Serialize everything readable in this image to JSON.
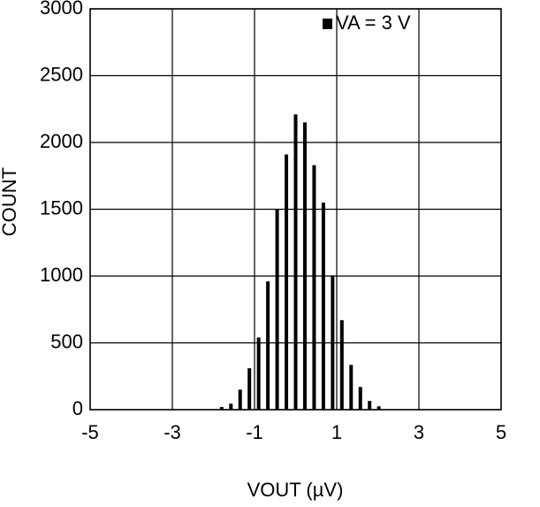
{
  "chart_data": {
    "type": "bar",
    "x_label": "VOUT (µV)",
    "y_label": "COUNT",
    "x": [
      -1.8,
      -1.575,
      -1.35,
      -1.125,
      -0.9,
      -0.675,
      -0.45,
      -0.225,
      0,
      0.225,
      0.45,
      0.675,
      0.9,
      1.125,
      1.35,
      1.575,
      1.8,
      2.025
    ],
    "series": [
      {
        "name": "VA = 3 V",
        "color": "#000000",
        "values": [
          20,
          45,
          150,
          310,
          540,
          960,
          1500,
          1910,
          2210,
          2150,
          1830,
          1550,
          1005,
          670,
          335,
          170,
          65,
          25
        ]
      }
    ],
    "xlim": [
      -5,
      5
    ],
    "xticks": [
      -5,
      -3,
      -1,
      1,
      3,
      5
    ],
    "ylim": [
      0,
      3000
    ],
    "yticks": [
      0,
      500,
      1000,
      1500,
      2000,
      2500,
      3000
    ],
    "grid": true,
    "legend": "top-right"
  }
}
